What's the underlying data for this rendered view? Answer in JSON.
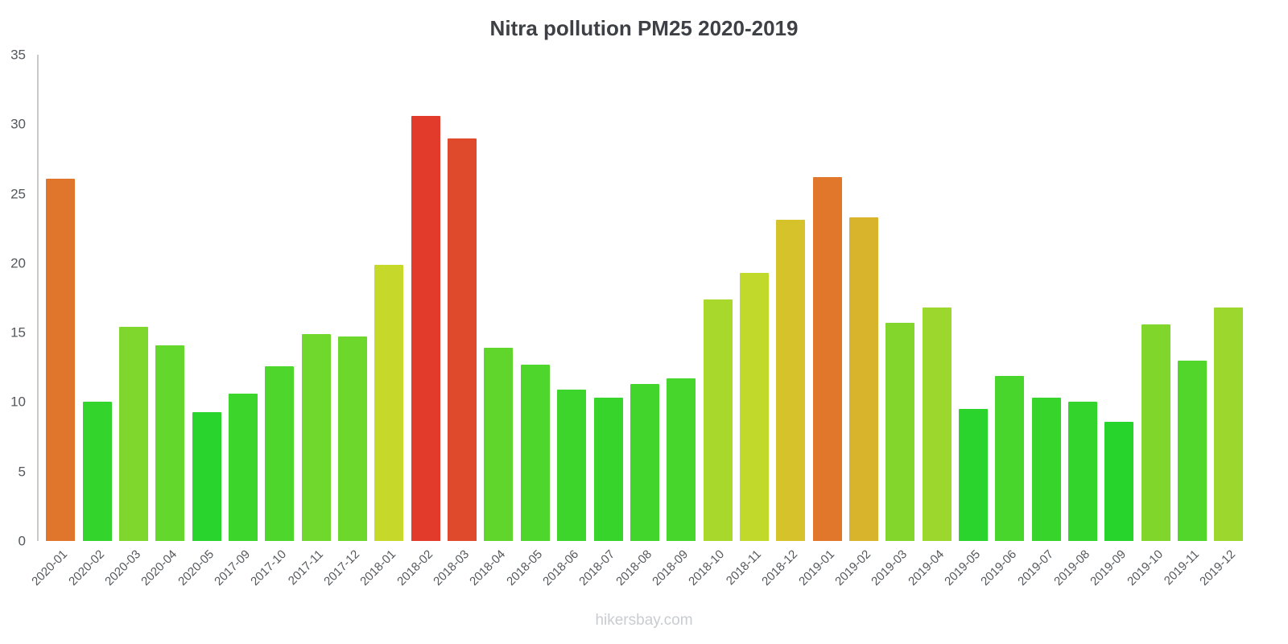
{
  "title": "Nitra pollution PM25 2020-2019",
  "footer": "hikersbay.com",
  "chart_data": {
    "type": "bar",
    "title": "Nitra pollution PM25 2020-2019",
    "xlabel": "",
    "ylabel": "",
    "ylim": [
      0,
      35
    ],
    "yticks": [
      0,
      5,
      10,
      15,
      20,
      25,
      30,
      35
    ],
    "grid": false,
    "legend": false,
    "source_watermark": "hikersbay.com",
    "categories": [
      "2020-01",
      "2020-02",
      "2020-03",
      "2020-04",
      "2020-05",
      "2017-09",
      "2017-10",
      "2017-11",
      "2017-12",
      "2018-01",
      "2018-02",
      "2018-03",
      "2018-04",
      "2018-05",
      "2018-06",
      "2018-07",
      "2018-08",
      "2018-09",
      "2018-10",
      "2018-11",
      "2018-12",
      "2019-01",
      "2019-02",
      "2019-03",
      "2019-04",
      "2019-05",
      "2019-06",
      "2019-07",
      "2019-08",
      "2019-09",
      "2019-10",
      "2019-11",
      "2019-12"
    ],
    "values": [
      26.1,
      10.0,
      15.4,
      14.1,
      9.3,
      10.6,
      12.6,
      14.9,
      14.7,
      19.9,
      30.6,
      29.0,
      13.9,
      12.7,
      10.9,
      10.3,
      11.3,
      11.7,
      17.4,
      19.3,
      23.1,
      26.2,
      23.3,
      15.7,
      16.8,
      9.5,
      11.9,
      10.3,
      10.0,
      8.6,
      15.6,
      13.0,
      16.8
    ],
    "colors": [
      "#e0762b",
      "#33d42c",
      "#7fd62c",
      "#63d72c",
      "#29d42c",
      "#3bd52c",
      "#4ed62c",
      "#70d72c",
      "#6dd72c",
      "#c6d92b",
      "#e23b2c",
      "#df4a2c",
      "#60d62c",
      "#4fd62c",
      "#3dd52c",
      "#37d52c",
      "#42d52c",
      "#46d62c",
      "#a8d82c",
      "#c0d92b",
      "#d6c32c",
      "#e0772b",
      "#d8b32c",
      "#82d62c",
      "#9bd72c",
      "#2bd42c",
      "#48d62c",
      "#37d52c",
      "#33d42c",
      "#26d42c",
      "#81d62c",
      "#53d62c",
      "#9bd72c"
    ],
    "axis_line_color": "#c9c9c9"
  }
}
